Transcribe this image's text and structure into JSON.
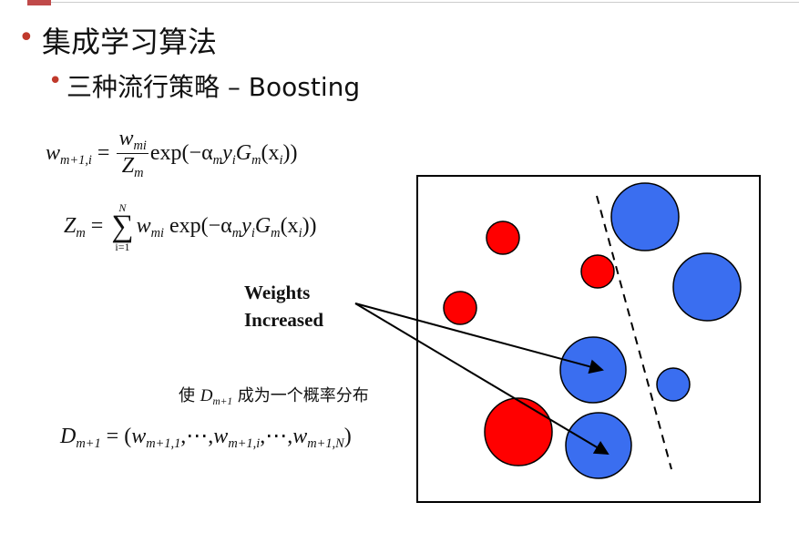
{
  "slide": {
    "bullet_char": "•",
    "heading": "集成学习算法",
    "subheading": "三种流行策略 – Boosting"
  },
  "formulas": {
    "w_update": {
      "lhs": "w",
      "lhs_sub": "m+1,i",
      "equals": "=",
      "num": "w",
      "num_sub": "mi",
      "den": "Z",
      "den_sub": "m",
      "exp_open": "exp(−α",
      "alpha_sub": "m",
      "y": "y",
      "y_sub": "i",
      "G": "G",
      "G_sub": "m",
      "x_open": "(x",
      "x_sub": "i",
      "close": "))"
    },
    "z_def": {
      "lhs": "Z",
      "lhs_sub": "m",
      "equals": "=",
      "sum_top": "N",
      "sum_sym": "∑",
      "sum_bot": "i=1",
      "w": "w",
      "w_sub": "mi",
      "exp_open": "exp(−α",
      "alpha_sub": "m",
      "y": "y",
      "y_sub": "i",
      "G": "G",
      "G_sub": "m",
      "x_open": "(x",
      "x_sub": "i",
      "close": "))"
    },
    "prob_note": {
      "prefix": "使 ",
      "D": "D",
      "D_sub": "m+1",
      "suffix": " 成为一个概率分布"
    },
    "d_def": {
      "lhs": "D",
      "lhs_sub": "m+1",
      "equals": "= (",
      "w1": "w",
      "w1_sub": "m+1,1",
      "sep1": ",⋯,",
      "wi": "w",
      "wi_sub": "m+1,i",
      "sep2": ",⋯,",
      "wN": "w",
      "wN_sub": "m+1,N",
      "close": ")"
    }
  },
  "diagram": {
    "label_line1": "Weights",
    "label_line2": "Increased",
    "colors": {
      "red": "#ff0000",
      "blue": "#3a6ef0",
      "outline": "#000000"
    }
  }
}
